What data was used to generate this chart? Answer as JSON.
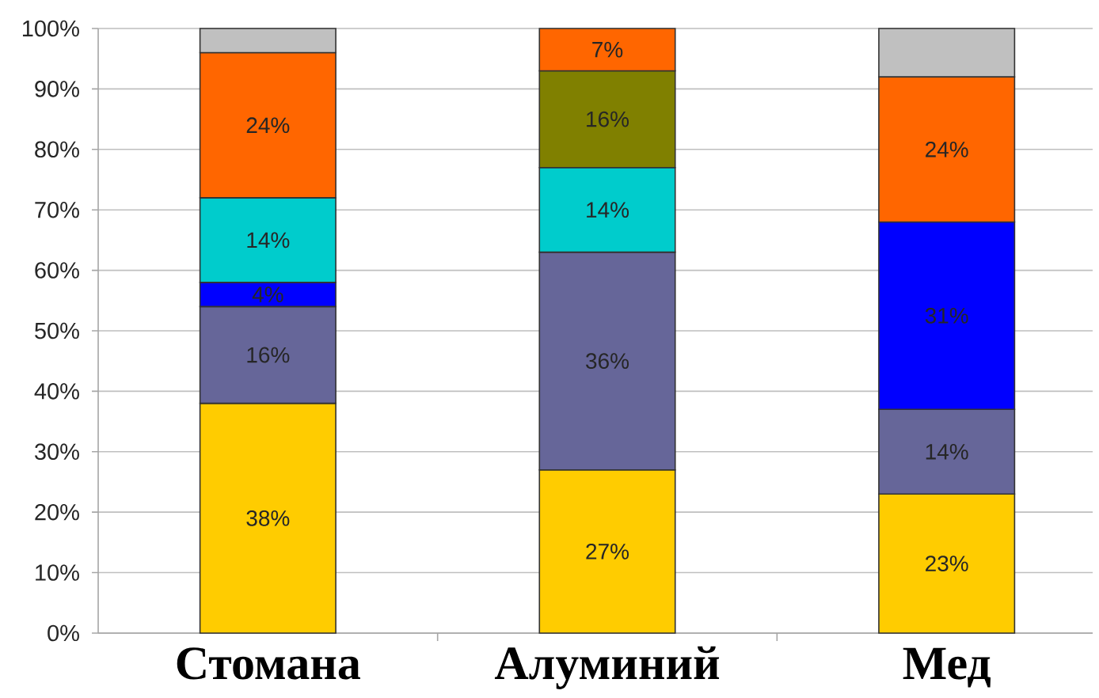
{
  "chart_data": {
    "type": "bar",
    "stacked": true,
    "categories": [
      "Стомана",
      "Алуминий",
      "Мед"
    ],
    "series": [
      {
        "color": "#ffcc00",
        "values": [
          38,
          27,
          23
        ],
        "value_labels": [
          "38%",
          "27%",
          "23%"
        ]
      },
      {
        "color": "#666699",
        "values": [
          16,
          36,
          14
        ],
        "value_labels": [
          "16%",
          "36%",
          "14%"
        ]
      },
      {
        "color": "#0000ff",
        "values": [
          4,
          null,
          31
        ],
        "value_labels": [
          "4%",
          null,
          "31%"
        ]
      },
      {
        "color": "#00cccc",
        "values": [
          14,
          14,
          null
        ],
        "value_labels": [
          "14%",
          "14%",
          null
        ]
      },
      {
        "color": "#808000",
        "values": [
          null,
          16,
          null
        ],
        "value_labels": [
          null,
          "16%",
          null
        ]
      },
      {
        "color": "#ff6600",
        "values": [
          24,
          7,
          24
        ],
        "value_labels": [
          "24%",
          "7%",
          "24%"
        ]
      },
      {
        "color": "#c0c0c0",
        "values": [
          4,
          null,
          8
        ]
      }
    ],
    "ylim": [
      0,
      100
    ],
    "yticks": [
      {
        "value": 0,
        "label": "0%"
      },
      {
        "value": 10,
        "label": "10%"
      },
      {
        "value": 20,
        "label": "20%"
      },
      {
        "value": 30,
        "label": "30%"
      },
      {
        "value": 40,
        "label": "40%"
      },
      {
        "value": 50,
        "label": "50%"
      },
      {
        "value": 60,
        "label": "60%"
      },
      {
        "value": 70,
        "label": "70%"
      },
      {
        "value": 80,
        "label": "80%"
      },
      {
        "value": 90,
        "label": "90%"
      },
      {
        "value": 100,
        "label": "100%"
      }
    ],
    "grid": "y"
  }
}
